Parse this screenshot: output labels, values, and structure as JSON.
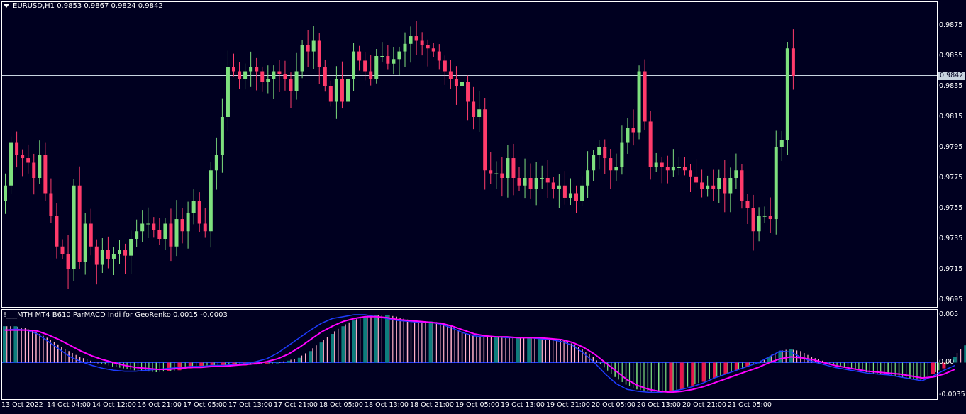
{
  "main_chart": {
    "symbol_line": "EURUSD,H1  0.9853 0.9867 0.9824 0.9842",
    "current_price_label": "0.9842",
    "y_ticks": [
      "0.9875",
      "0.9855",
      "0.9835",
      "0.9815",
      "0.9795",
      "0.9775",
      "0.9755",
      "0.9735",
      "0.9715",
      "0.9695"
    ]
  },
  "indicator": {
    "title": "!___MTH MT4 B610 ParMACD Indi for GeoRenko 0.0015 -0.0003",
    "y_ticks": [
      "0.005",
      "0.00",
      "-0.0035"
    ]
  },
  "x_ticks": [
    "13 Oct 2022",
    "14 Oct 04:00",
    "14 Oct 12:00",
    "16 Oct 21:00",
    "17 Oct 05:00",
    "17 Oct 13:00",
    "17 Oct 21:00",
    "18 Oct 05:00",
    "18 Oct 13:00",
    "18 Oct 21:00",
    "19 Oct 05:00",
    "19 Oct 13:00",
    "19 Oct 21:00",
    "20 Oct 05:00",
    "20 Oct 13:00",
    "20 Oct 21:00",
    "21 Oct 05:00"
  ],
  "colors": {
    "background": "#000020",
    "bull": "#7ee07e",
    "bear": "#ff3b6b",
    "grid_frame": "#ffffff",
    "hist_teal": "#0e7d7d",
    "hist_red": "#e8154d",
    "hist_green_thin": "#7ee07e",
    "hist_pink_thin": "#ffb0c8",
    "signal_magenta": "#ff00ff",
    "macd_blue": "#1e3cff"
  },
  "chart_data": {
    "type": "candlestick",
    "symbol": "EURUSD",
    "timeframe": "H1",
    "ylim": [
      0.969,
      0.9885
    ],
    "last_price": 0.9842,
    "closes": [
      0.977,
      0.9798,
      0.979,
      0.9788,
      0.9785,
      0.9775,
      0.979,
      0.9765,
      0.975,
      0.973,
      0.9725,
      0.9715,
      0.977,
      0.972,
      0.9745,
      0.973,
      0.9718,
      0.9728,
      0.9722,
      0.9725,
      0.9728,
      0.9724,
      0.9735,
      0.974,
      0.9745,
      0.9745,
      0.9741,
      0.9735,
      0.9745,
      0.973,
      0.9748,
      0.974,
      0.9752,
      0.976,
      0.9745,
      0.974,
      0.978,
      0.979,
      0.9815,
      0.9848,
      0.9845,
      0.984,
      0.9845,
      0.9848,
      0.9845,
      0.9838,
      0.984,
      0.9845,
      0.9843,
      0.984,
      0.9832,
      0.9845,
      0.9862,
      0.9858,
      0.9865,
      0.9848,
      0.9835,
      0.9825,
      0.984,
      0.9825,
      0.984,
      0.9858,
      0.9852,
      0.9845,
      0.984,
      0.9855,
      0.9855,
      0.985,
      0.9853,
      0.9858,
      0.9863,
      0.9868,
      0.9865,
      0.9862,
      0.986,
      0.9858,
      0.9852,
      0.9845,
      0.984,
      0.9835,
      0.9838,
      0.9825,
      0.9815,
      0.982,
      0.978,
      0.9778,
      0.9778,
      0.9775,
      0.9788,
      0.9775,
      0.977,
      0.9775,
      0.9768,
      0.9775,
      0.9775,
      0.9772,
      0.9768,
      0.977,
      0.9762,
      0.9765,
      0.976,
      0.977,
      0.978,
      0.979,
      0.9795,
      0.9788,
      0.978,
      0.9782,
      0.9798,
      0.9808,
      0.9805,
      0.9845,
      0.9812,
      0.9782,
      0.9785,
      0.9782,
      0.978,
      0.9782,
      0.9782,
      0.978,
      0.9776,
      0.9772,
      0.9768,
      0.977,
      0.9768,
      0.9775,
      0.9765,
      0.9775,
      0.978,
      0.976,
      0.9755,
      0.974,
      0.975,
      0.975,
      0.9748,
      0.9795,
      0.98,
      0.986,
      0.9842
    ]
  },
  "macd_data": {
    "type": "histogram+lines",
    "ylim": [
      -0.0045,
      0.0052
    ],
    "histogram": [
      0.0038,
      0.0038,
      0.0036,
      0.0032,
      0.0026,
      0.0019,
      0.0012,
      0.0006,
      0.0002,
      -0.0001,
      -0.0004,
      -0.0006,
      -0.0008,
      -0.0009,
      -0.001,
      -0.0009,
      -0.0008,
      -0.0006,
      -0.0005,
      -0.0004,
      -0.0004,
      -0.0003,
      -0.0003,
      -0.0002,
      -0.0001,
      0.0,
      0.0002,
      0.0005,
      0.0012,
      0.0021,
      0.003,
      0.0038,
      0.0044,
      0.0048,
      0.005,
      0.005,
      0.0048,
      0.0045,
      0.0043,
      0.0043,
      0.0042,
      0.0038,
      0.0032,
      0.0028,
      0.0027,
      0.0027,
      0.0026,
      0.0026,
      0.0026,
      0.0026,
      0.0025,
      0.0024,
      0.002,
      0.0014,
      0.0006,
      -0.0005,
      -0.0015,
      -0.0023,
      -0.0028,
      -0.003,
      -0.0031,
      -0.003,
      -0.0028,
      -0.0024,
      -0.002,
      -0.0016,
      -0.0012,
      -0.0008,
      -0.0004,
      0.0,
      0.0006,
      0.0012,
      0.0014,
      0.0012,
      0.0006,
      0.0002,
      -0.0002,
      -0.0005,
      -0.0007,
      -0.001,
      -0.0012,
      -0.0013,
      -0.0015,
      -0.0017,
      -0.0018,
      -0.0012,
      -0.0006,
      0.0006,
      0.0018
    ],
    "macd_line": [
      0.0034,
      0.0035,
      0.0034,
      0.003,
      0.0022,
      0.0014,
      0.0006,
      0.0001,
      -0.0003,
      -0.0006,
      -0.0008,
      -0.0009,
      -0.0009,
      -0.0008,
      -0.0007,
      -0.0006,
      -0.0005,
      -0.0004,
      -0.0004,
      -0.0003,
      -0.0003,
      -0.0002,
      -0.0001,
      0.0001,
      0.0004,
      0.001,
      0.0018,
      0.0026,
      0.0034,
      0.0041,
      0.0046,
      0.0048,
      0.005,
      0.005,
      0.0048,
      0.0046,
      0.0044,
      0.0043,
      0.0042,
      0.0042,
      0.004,
      0.0036,
      0.0031,
      0.0028,
      0.0027,
      0.0027,
      0.0026,
      0.0026,
      0.0026,
      0.0025,
      0.0024,
      0.0022,
      0.0018,
      0.001,
      0.0,
      -0.0012,
      -0.0022,
      -0.0028,
      -0.003,
      -0.0031,
      -0.0031,
      -0.003,
      -0.0028,
      -0.0025,
      -0.0021,
      -0.0016,
      -0.0012,
      -0.0008,
      -0.0004,
      0.0,
      0.0006,
      0.0012,
      0.0011,
      0.0005,
      0.0001,
      -0.0002,
      -0.0005,
      -0.0007,
      -0.0009,
      -0.0011,
      -0.0012,
      -0.0013,
      -0.0015,
      -0.0017,
      -0.0019,
      -0.0014,
      -0.0008,
      -0.0003
    ],
    "signal_line": [
      0.0034,
      0.0034,
      0.0034,
      0.0033,
      0.0029,
      0.0024,
      0.0018,
      0.0012,
      0.0007,
      0.0003,
      0.0,
      -0.0003,
      -0.0005,
      -0.0006,
      -0.0007,
      -0.0007,
      -0.0006,
      -0.0005,
      -0.0005,
      -0.0004,
      -0.0004,
      -0.0003,
      -0.0002,
      -0.0001,
      0.0001,
      0.0004,
      0.0009,
      0.0016,
      0.0024,
      0.0032,
      0.0038,
      0.0043,
      0.0046,
      0.0048,
      0.0048,
      0.0047,
      0.0045,
      0.0044,
      0.0043,
      0.0042,
      0.0041,
      0.0038,
      0.0034,
      0.003,
      0.0028,
      0.0027,
      0.0027,
      0.0026,
      0.0026,
      0.0026,
      0.0025,
      0.0024,
      0.0021,
      0.0016,
      0.0009,
      0.0,
      -0.0009,
      -0.0018,
      -0.0024,
      -0.0028,
      -0.003,
      -0.0031,
      -0.003,
      -0.0028,
      -0.0025,
      -0.0021,
      -0.0017,
      -0.0013,
      -0.0009,
      -0.0005,
      0.0,
      0.0004,
      0.0006,
      0.0005,
      0.0003,
      0.0,
      -0.0003,
      -0.0005,
      -0.0007,
      -0.0009,
      -0.001,
      -0.0011,
      -0.0012,
      -0.0014,
      -0.0016,
      -0.0015,
      -0.0012,
      -0.0007
    ]
  }
}
